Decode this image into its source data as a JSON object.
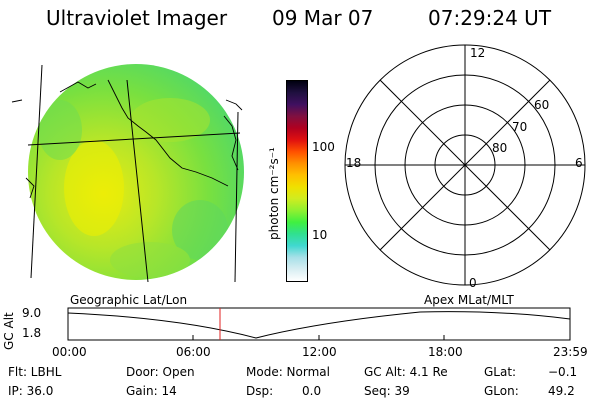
{
  "header": {
    "instrument": "Ultraviolet Imager",
    "date": "09 Mar 07",
    "time": "07:29:24 UT"
  },
  "colorbar": {
    "unit_label": "photon cm⁻²s⁻¹",
    "tick_100": "100",
    "tick_10": "10",
    "colors": [
      "#ffffff",
      "#d8eef2",
      "#a8e0e8",
      "#40d8d0",
      "#30e090",
      "#40f040",
      "#90f030",
      "#d0ec20",
      "#f0e000",
      "#ffc000",
      "#ff9000",
      "#ff5000",
      "#e01010",
      "#b00020",
      "#801040",
      "#401060",
      "#201040",
      "#000010"
    ]
  },
  "polar": {
    "mlt_12": "12",
    "mlt_18": "18",
    "mlt_6": "6",
    "mlt_0": "0",
    "lat_60": "60",
    "lat_70": "70",
    "lat_80": "80"
  },
  "altitude_plot": {
    "ylabel": "GC Alt",
    "ymax": "9.0",
    "ymin": "1.8",
    "left_caption": "Geographic Lat/Lon",
    "right_caption": "Apex  MLat/MLT",
    "x_ticks": [
      "00:00",
      "06:00",
      "12:00",
      "18:00",
      "23:59"
    ]
  },
  "info": {
    "flt": "Flt: LBHL",
    "ip": "IP: 36.0",
    "door": "Door: Open",
    "gain": "Gain: 14",
    "mode": "Mode: Normal",
    "dsp_label": "Dsp:",
    "dsp_value": "0.0",
    "gc_alt": "GC Alt: 4.1 Re",
    "seq": "Seq: 39",
    "glat_label": "GLat:",
    "glat_value": "−0.1",
    "glon_label": "GLon:",
    "glon_value": "49.2"
  }
}
